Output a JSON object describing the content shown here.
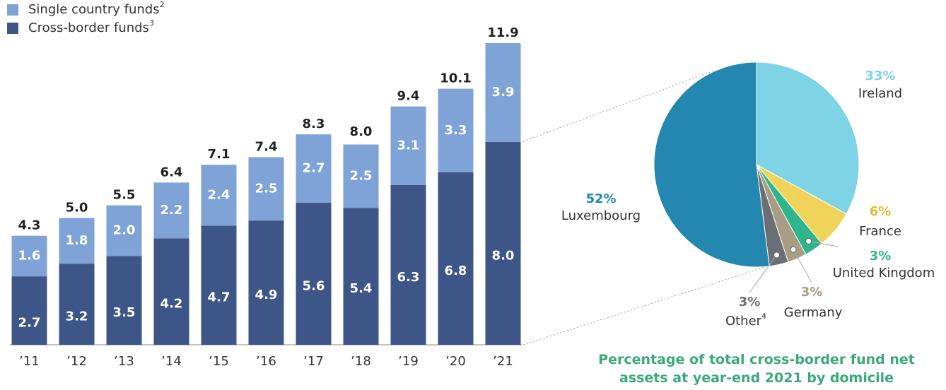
{
  "chart_data": [
    {
      "type": "bar",
      "stacked": true,
      "categories": [
        "’11",
        "’12",
        "’13",
        "’14",
        "’15",
        "’16",
        "’17",
        "’18",
        "’19",
        "’20",
        "’21"
      ],
      "series": [
        {
          "name": "Cross-border funds",
          "footnote": "3",
          "color": "#3d5587",
          "values": [
            2.7,
            3.2,
            3.5,
            4.2,
            4.7,
            4.9,
            5.6,
            5.4,
            6.3,
            6.8,
            8.0
          ],
          "value_labels": [
            "2.7",
            "3.2",
            "3.5",
            "4.2",
            "4.7",
            "4.9",
            "5.6",
            "5.4",
            "6.3",
            "6.8",
            "8.0"
          ]
        },
        {
          "name": "Single country funds",
          "footnote": "2",
          "color": "#7fa3d6",
          "values": [
            1.6,
            1.8,
            2.0,
            2.2,
            2.4,
            2.5,
            2.7,
            2.5,
            3.1,
            3.3,
            3.9
          ],
          "value_labels": [
            "1.6",
            "1.8",
            "2.0",
            "2.2",
            "2.4",
            "2.5",
            "2.7",
            "2.5",
            "3.1",
            "3.3",
            "3.9"
          ]
        }
      ],
      "totals": [
        4.3,
        5.0,
        5.5,
        6.4,
        7.1,
        7.4,
        8.3,
        8.0,
        9.4,
        10.1,
        11.9
      ],
      "total_labels": [
        "4.3",
        "5.0",
        "5.5",
        "6.4",
        "7.1",
        "7.4",
        "8.3",
        "8.0",
        "9.4",
        "10.1",
        "11.9"
      ],
      "legend": "top-left"
    },
    {
      "type": "pie",
      "title": "Percentage of total cross-border fund net assets at year-end 2021 by domicile",
      "labels": [
        "Ireland",
        "France",
        "United Kingdom",
        "Germany",
        "Other",
        "Luxembourg"
      ],
      "label_footnotes": [
        null,
        null,
        null,
        null,
        "4",
        null
      ],
      "values": [
        33,
        6,
        3,
        3,
        3,
        52
      ],
      "value_labels": [
        "33%",
        "6%",
        "3%",
        "3%",
        "3%",
        "52%"
      ],
      "colors": [
        "#7fd3e6",
        "#f0d45a",
        "#2fb58c",
        "#a89c84",
        "#6b6e73",
        "#2387b0"
      ]
    }
  ]
}
